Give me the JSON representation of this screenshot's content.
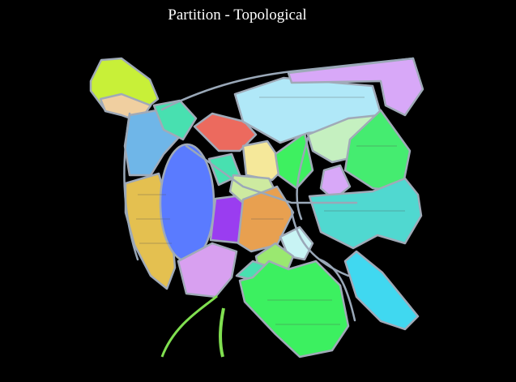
{
  "title": "Partition - Topological"
}
